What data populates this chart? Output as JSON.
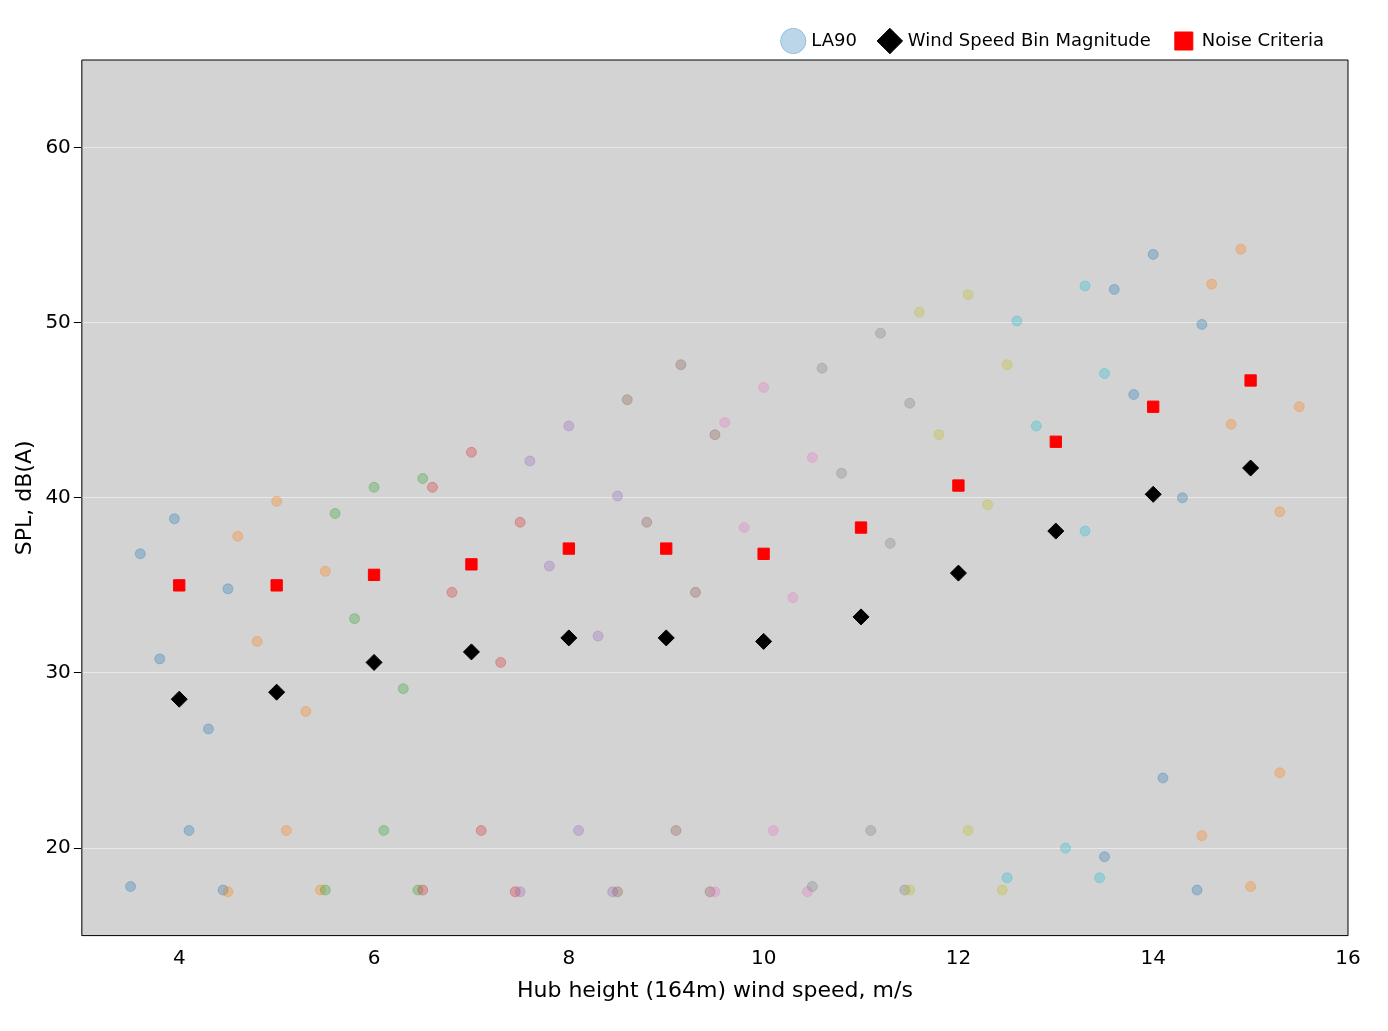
{
  "chart_data": {
    "type": "scatter",
    "xlabel": "Hub height (164m) wind speed, m/s",
    "ylabel": "SPL, dB(A)",
    "xlim": [
      3,
      16
    ],
    "xticks": [
      4,
      6,
      8,
      10,
      12,
      14,
      16
    ],
    "ylim": [
      15,
      65
    ],
    "yticks": [
      20,
      30,
      40,
      50,
      60
    ],
    "grid": "y",
    "legend": "top right",
    "series": [
      {
        "name": "LA90",
        "marker": "circle",
        "color": "#1f77b4",
        "x": [
          3.5,
          3.6,
          3.8,
          3.95,
          4.1,
          4.3,
          4.45,
          4.5,
          4.5,
          4.6,
          4.8,
          5.0,
          5.1,
          5.3,
          5.45,
          5.5,
          5.5,
          5.6,
          5.8,
          6.0,
          6.1,
          6.3,
          6.45,
          6.5,
          6.5,
          6.6,
          6.8,
          7.0,
          7.1,
          7.3,
          7.45,
          7.5,
          7.5,
          7.6,
          7.8,
          8.0,
          8.1,
          8.3,
          8.45,
          8.5,
          8.5,
          8.6,
          8.8,
          9.15,
          9.1,
          9.3,
          9.45,
          9.5,
          9.5,
          9.6,
          9.8,
          10.0,
          10.1,
          10.3,
          10.45,
          10.5,
          10.5,
          10.6,
          10.8,
          11.2,
          11.1,
          11.3,
          11.45,
          11.5,
          11.5,
          11.6,
          11.8,
          12.1,
          12.1,
          12.3,
          12.45,
          12.5,
          12.5,
          12.6,
          12.8,
          13.3,
          13.1,
          13.3,
          13.45,
          13.5,
          13.5,
          13.6,
          13.8,
          14.0,
          14.1,
          14.3,
          14.45,
          14.5,
          14.5,
          14.6,
          14.8,
          14.9,
          15.0,
          15.3,
          15.3,
          15.5
        ],
        "values": [
          17.8,
          36.8,
          30.8,
          38.8,
          21,
          26.8,
          17.6,
          34.8,
          17.5,
          37.8,
          31.8,
          39.8,
          21,
          27.8,
          17.6,
          35.8,
          17.6,
          39.1,
          33.1,
          40.6,
          21,
          29.1,
          17.6,
          41.1,
          17.6,
          40.6,
          34.6,
          42.6,
          21,
          30.6,
          17.5,
          38.6,
          17.5,
          42.1,
          36.1,
          44.1,
          21,
          32.1,
          17.5,
          40.1,
          17.5,
          45.6,
          38.6,
          47.6,
          21,
          34.6,
          17.5,
          43.6,
          17.5,
          44.3,
          38.3,
          46.3,
          21,
          34.3,
          17.5,
          42.3,
          17.8,
          47.4,
          41.4,
          49.4,
          21,
          37.4,
          17.6,
          45.4,
          17.6,
          50.6,
          43.6,
          51.6,
          21,
          39.6,
          17.6,
          47.6,
          18.3,
          50.1,
          44.1,
          52.1,
          20,
          38.1,
          18.3,
          47.1,
          19.5,
          51.9,
          45.9,
          53.9,
          24,
          40,
          17.6,
          49.9,
          20.7,
          52.2,
          44.2,
          54.2,
          17.8,
          39.2,
          24.3,
          45.2
        ],
        "colors": [
          "#1f77b4",
          "#1f77b4",
          "#1f77b4",
          "#1f77b4",
          "#1f77b4",
          "#1f77b4",
          "#1f77b4",
          "#1f77b4",
          "#ff7f0e",
          "#ff7f0e",
          "#ff7f0e",
          "#ff7f0e",
          "#ff7f0e",
          "#ff7f0e",
          "#ff7f0e",
          "#ff7f0e",
          "#2ca02c",
          "#2ca02c",
          "#2ca02c",
          "#2ca02c",
          "#2ca02c",
          "#2ca02c",
          "#2ca02c",
          "#2ca02c",
          "#d62728",
          "#d62728",
          "#d62728",
          "#d62728",
          "#d62728",
          "#d62728",
          "#d62728",
          "#d62728",
          "#9467bd",
          "#9467bd",
          "#9467bd",
          "#9467bd",
          "#9467bd",
          "#9467bd",
          "#9467bd",
          "#9467bd",
          "#8c564b",
          "#8c564b",
          "#8c564b",
          "#8c564b",
          "#8c564b",
          "#8c564b",
          "#8c564b",
          "#8c564b",
          "#e377c2",
          "#e377c2",
          "#e377c2",
          "#e377c2",
          "#e377c2",
          "#e377c2",
          "#e377c2",
          "#e377c2",
          "#7f7f7f",
          "#7f7f7f",
          "#7f7f7f",
          "#7f7f7f",
          "#7f7f7f",
          "#7f7f7f",
          "#7f7f7f",
          "#7f7f7f",
          "#bcbd22",
          "#bcbd22",
          "#bcbd22",
          "#bcbd22",
          "#bcbd22",
          "#bcbd22",
          "#bcbd22",
          "#bcbd22",
          "#17becf",
          "#17becf",
          "#17becf",
          "#17becf",
          "#17becf",
          "#17becf",
          "#17becf",
          "#17becf",
          "#1f77b4",
          "#1f77b4",
          "#1f77b4",
          "#1f77b4",
          "#1f77b4",
          "#1f77b4",
          "#1f77b4",
          "#1f77b4",
          "#ff7f0e",
          "#ff7f0e",
          "#ff7f0e",
          "#ff7f0e",
          "#ff7f0e",
          "#ff7f0e",
          "#ff7f0e",
          "#ff7f0e"
        ]
      },
      {
        "name": "Wind Speed Bin Magnitude",
        "marker": "diamond",
        "color": "#000000",
        "x": [
          4,
          5,
          6,
          7,
          8,
          9,
          10,
          11,
          12,
          13,
          14,
          15
        ],
        "values": [
          28.5,
          28.9,
          30.6,
          31.2,
          32.0,
          32.0,
          31.8,
          33.2,
          35.7,
          38.1,
          40.2,
          41.7
        ]
      },
      {
        "name": "Noise Criteria",
        "marker": "square",
        "color": "#ff0000",
        "x": [
          4,
          5,
          6,
          7,
          8,
          9,
          10,
          11,
          12,
          13,
          14,
          15
        ],
        "values": [
          35.0,
          35.0,
          35.6,
          36.2,
          37.1,
          37.1,
          36.8,
          38.3,
          40.7,
          43.2,
          45.2,
          46.7
        ]
      }
    ]
  }
}
